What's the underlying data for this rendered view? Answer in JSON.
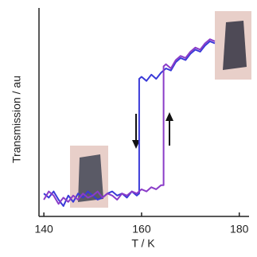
{
  "chart_data": {
    "type": "line",
    "x_label": "T / K",
    "y_label": "Transmission / au",
    "xlim": [
      139,
      182
    ],
    "xticks": [
      140,
      160,
      180
    ],
    "ylim": [
      0,
      1
    ],
    "series": [
      {
        "color": "#3a3ad8",
        "x": [
          140,
          141,
          142,
          143,
          144,
          145,
          146,
          147,
          148,
          149,
          150,
          151,
          152,
          153,
          154,
          155,
          156,
          157,
          158,
          159,
          159.5,
          159.5,
          160,
          161,
          162,
          163,
          164,
          165,
          166,
          167,
          168,
          169,
          170,
          171,
          172,
          173,
          174,
          175
        ],
        "values": [
          0.11,
          0.09,
          0.12,
          0.08,
          0.05,
          0.1,
          0.07,
          0.11,
          0.09,
          0.12,
          0.1,
          0.08,
          0.09,
          0.11,
          0.12,
          0.1,
          0.11,
          0.09,
          0.12,
          0.1,
          0.11,
          0.66,
          0.67,
          0.65,
          0.68,
          0.66,
          0.69,
          0.71,
          0.7,
          0.74,
          0.76,
          0.75,
          0.78,
          0.8,
          0.79,
          0.82,
          0.84,
          0.83
        ]
      },
      {
        "color": "#8a3cc8",
        "x": [
          140,
          141,
          142,
          143,
          144,
          145,
          146,
          147,
          148,
          149,
          150,
          151,
          152,
          153,
          154,
          155,
          156,
          157,
          158,
          159,
          160,
          161,
          162,
          163,
          164,
          164.5,
          164.5,
          165,
          166,
          167,
          168,
          169,
          170,
          171,
          172,
          173,
          174,
          175
        ],
        "values": [
          0.08,
          0.12,
          0.1,
          0.06,
          0.09,
          0.07,
          0.1,
          0.08,
          0.11,
          0.09,
          0.1,
          0.12,
          0.09,
          0.11,
          0.1,
          0.08,
          0.11,
          0.1,
          0.12,
          0.11,
          0.13,
          0.12,
          0.14,
          0.13,
          0.15,
          0.15,
          0.72,
          0.73,
          0.71,
          0.75,
          0.77,
          0.76,
          0.79,
          0.81,
          0.8,
          0.83,
          0.85,
          0.84
        ]
      }
    ]
  }
}
